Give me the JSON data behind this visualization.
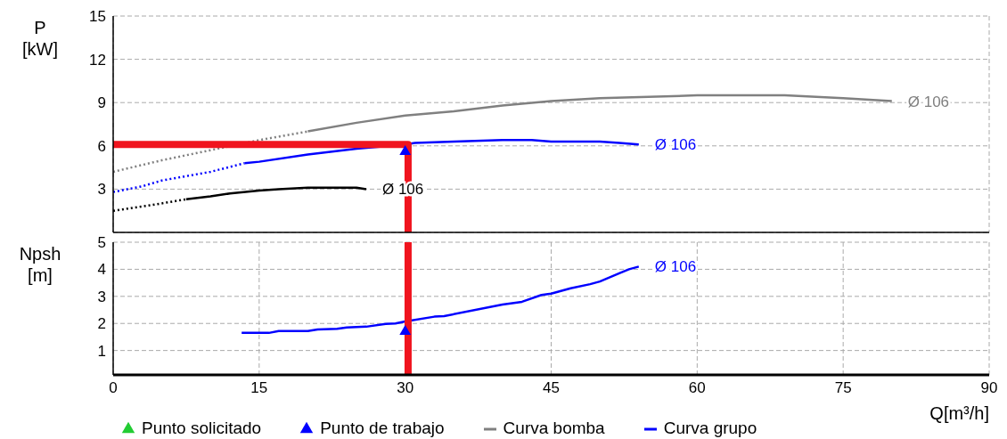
{
  "chart_data": [
    {
      "type": "line",
      "ylabel": "P [kW]",
      "xlim": [
        0,
        90
      ],
      "xticks": [
        0,
        15,
        30,
        45,
        60,
        75,
        90
      ],
      "ylim": [
        0,
        15
      ],
      "yticks": [
        3,
        6,
        9,
        12,
        15
      ],
      "grid": true,
      "legend": "bottom",
      "tick_labels": "y",
      "series": [
        {
          "type": "scatter",
          "name": "Punto solicitado",
          "color": "#22cc33",
          "marker": "triangle"
        },
        {
          "type": "scatter",
          "name": "Punto de trabajo",
          "color": "#0000ff",
          "marker": "triangle",
          "x": [
            30
          ],
          "values": [
            5.6
          ]
        },
        {
          "color": "#808080",
          "line_style": "dotted",
          "x": [
            0,
            5,
            10,
            15,
            20
          ],
          "values": [
            4.2,
            5.0,
            5.7,
            6.4,
            7.0
          ]
        },
        {
          "name": "Curva bomba",
          "color": "#808080",
          "line_style": "solid",
          "x": [
            20,
            25,
            30,
            35,
            40,
            45,
            50,
            55,
            60,
            65,
            69,
            75,
            80
          ],
          "values": [
            7.0,
            7.6,
            8.1,
            8.4,
            8.8,
            9.1,
            9.3,
            9.4,
            9.5,
            9.5,
            9.5,
            9.3,
            9.1
          ]
        },
        {
          "color": "#0000ff",
          "line_style": "dotted",
          "x": [
            0,
            3,
            5,
            10,
            13.5
          ],
          "values": [
            2.8,
            3.2,
            3.6,
            4.2,
            4.8
          ]
        },
        {
          "name": "Curva grupo",
          "color": "#0000ff",
          "line_style": "solid",
          "x": [
            13.5,
            15,
            20,
            25,
            30,
            31,
            35,
            40,
            43,
            45,
            50,
            52,
            54
          ],
          "values": [
            4.8,
            4.9,
            5.4,
            5.8,
            6.1,
            6.2,
            6.3,
            6.4,
            6.4,
            6.3,
            6.3,
            6.2,
            6.1
          ]
        },
        {
          "color": "#000000",
          "line_style": "dotted",
          "x": [
            0,
            4,
            7.5
          ],
          "values": [
            1.5,
            1.9,
            2.3
          ]
        },
        {
          "color": "#000000",
          "line_style": "solid",
          "x": [
            7.5,
            10,
            12,
            15,
            17,
            20,
            25,
            26
          ],
          "values": [
            2.3,
            2.5,
            2.7,
            2.9,
            3.0,
            3.1,
            3.1,
            3.0
          ]
        },
        {
          "color": "#f0141e",
          "line_style": "solid",
          "x": [
            0,
            30.3,
            30.3
          ],
          "values": [
            6.1,
            6.1,
            0
          ]
        }
      ],
      "annotations": [
        {
          "text": "Ø 106",
          "x": 80,
          "y": 9.1
        },
        {
          "text": "Ø 106",
          "x": 54,
          "y": 6.1
        },
        {
          "text": "Ø 106",
          "x": 26,
          "y": 3.0
        }
      ]
    },
    {
      "type": "line",
      "ylabel": "Npsh [m]",
      "xlabel": "Q[m³/h]",
      "xlim": [
        0,
        90
      ],
      "xticks": [
        0,
        15,
        30,
        45,
        60,
        75,
        90
      ],
      "ylim": [
        0.1,
        5
      ],
      "yticks": [
        1,
        2,
        3,
        4,
        5
      ],
      "grid": true,
      "series": [
        {
          "color": "#0000ff",
          "line_style": "solid",
          "x": [
            13.2,
            16,
            17,
            20,
            21,
            23,
            24,
            26,
            28,
            29,
            30,
            33,
            34,
            40,
            42,
            44,
            45,
            47,
            49,
            50,
            52,
            53,
            54
          ],
          "values": [
            1.65,
            1.65,
            1.72,
            1.72,
            1.78,
            1.8,
            1.85,
            1.88,
            1.98,
            2.0,
            2.07,
            2.25,
            2.27,
            2.7,
            2.8,
            3.05,
            3.1,
            3.3,
            3.45,
            3.55,
            3.85,
            4.0,
            4.1
          ]
        },
        {
          "color": "#f0141e",
          "line_style": "solid",
          "x": [
            30.3,
            30.3
          ],
          "values": [
            5,
            0.1
          ]
        },
        {
          "type": "scatter",
          "color": "#0000ff",
          "marker": "triangle",
          "x": [
            30
          ],
          "values": [
            1.7
          ]
        }
      ],
      "annotations": [
        {
          "text": "Ø 106",
          "x": 54,
          "y": 4.1
        }
      ]
    }
  ]
}
